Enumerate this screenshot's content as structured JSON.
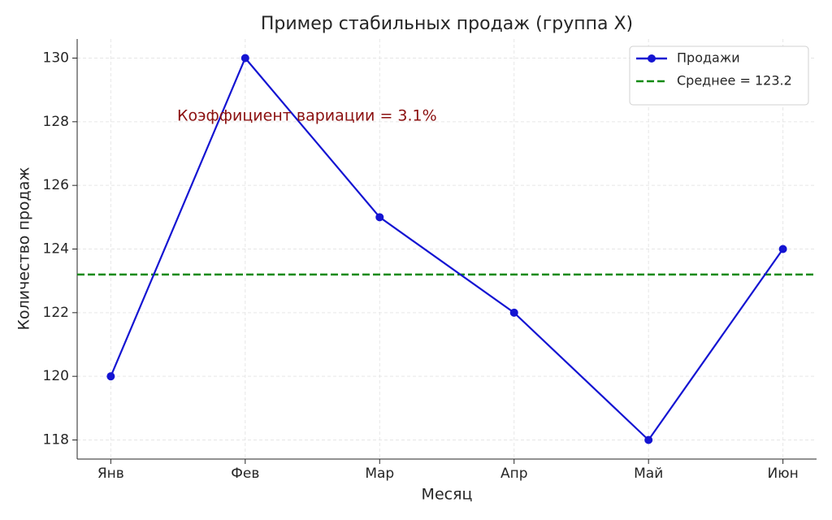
{
  "chart_data": {
    "type": "line",
    "title": "Пример стабильных продаж (группа X)",
    "xlabel": "Месяц",
    "ylabel": "Количество продаж",
    "categories": [
      "Янв",
      "Фев",
      "Мар",
      "Апр",
      "Май",
      "Июн"
    ],
    "series": [
      {
        "name": "Продажи",
        "color": "#1414d2",
        "values": [
          120,
          130,
          125,
          122,
          118,
          124
        ]
      }
    ],
    "reference_lines": [
      {
        "name": "Среднее = 123.2",
        "value": 123.2,
        "color": "#108a10",
        "style": "dashed"
      }
    ],
    "annotations": [
      {
        "text": "Коэффициент вариации = 3.1%",
        "color": "#8b1010"
      }
    ],
    "ylim": [
      117.4,
      130.6
    ],
    "yticks": [
      118,
      120,
      122,
      124,
      126,
      128,
      130
    ],
    "grid": true,
    "legend": "upper right"
  }
}
